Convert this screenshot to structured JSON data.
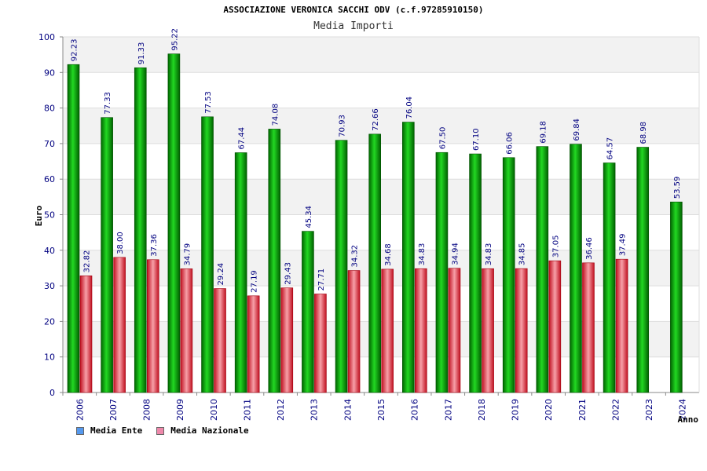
{
  "chart_data": {
    "type": "bar",
    "title": "ASSOCIAZIONE VERONICA SACCHI ODV (c.f.97285910150)",
    "subtitle": "Media Importi",
    "xlabel": "Anno",
    "ylabel": "Euro",
    "ylim": [
      0,
      100
    ],
    "yticks": [
      0,
      10,
      20,
      30,
      40,
      50,
      60,
      70,
      80,
      90,
      100
    ],
    "grid": true,
    "categories": [
      "2006",
      "2007",
      "2008",
      "2009",
      "2010",
      "2011",
      "2012",
      "2013",
      "2014",
      "2015",
      "2016",
      "2017",
      "2018",
      "2019",
      "2020",
      "2021",
      "2022",
      "2023",
      "2024"
    ],
    "series": [
      {
        "name": "Media Ente",
        "color": "#00a000",
        "values": [
          92.23,
          77.33,
          91.33,
          95.22,
          77.53,
          67.44,
          74.08,
          45.34,
          70.93,
          72.66,
          76.04,
          67.5,
          67.1,
          66.06,
          69.18,
          69.84,
          64.57,
          68.98,
          53.59
        ],
        "labels": [
          "92.23",
          "77.33",
          "91.33",
          "95.22",
          "77.53",
          "67.44",
          "74.08",
          "45.34",
          "70.93",
          "72.66",
          "76.04",
          "67.50",
          "67.10",
          "66.06",
          "69.18",
          "69.84",
          "64.57",
          "68.98",
          "53.59"
        ]
      },
      {
        "name": "Media Nazionale",
        "color": "#e03040",
        "values": [
          32.82,
          38.0,
          37.36,
          34.79,
          29.24,
          27.19,
          29.43,
          27.71,
          34.32,
          34.68,
          34.83,
          34.94,
          34.83,
          34.85,
          37.05,
          36.46,
          37.49,
          null,
          null
        ],
        "labels": [
          "32.82",
          "38.00",
          "37.36",
          "34.79",
          "29.24",
          "27.19",
          "29.43",
          "27.71",
          "34.32",
          "34.68",
          "34.83",
          "34.94",
          "34.83",
          "34.85",
          "37.05",
          "36.46",
          "37.49",
          null,
          null
        ]
      }
    ],
    "legend": [
      {
        "label": "Media Ente",
        "color": "#5599ee"
      },
      {
        "label": "Media Nazionale",
        "color": "#ee88aa"
      }
    ],
    "legend_position": "bottom-left"
  }
}
